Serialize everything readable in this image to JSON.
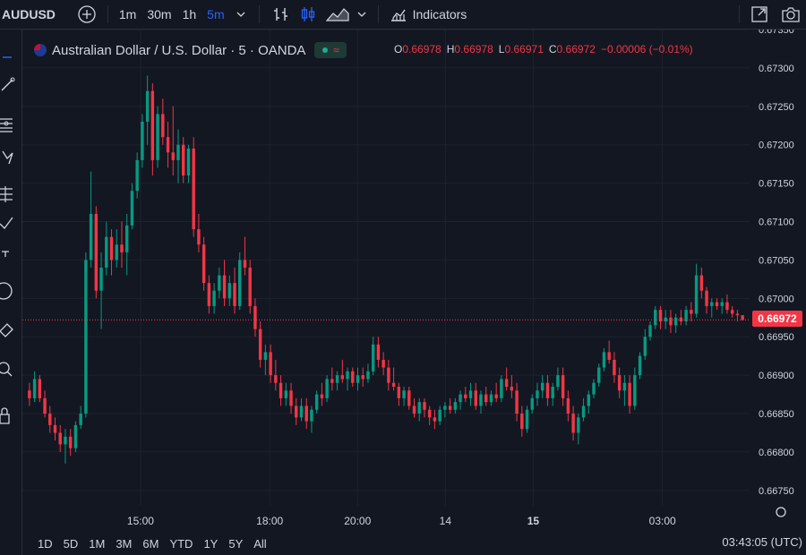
{
  "toolbar": {
    "symbol": "AUDUSD",
    "intervals": [
      "1m",
      "30m",
      "1h",
      "5m"
    ],
    "active_interval": "5m",
    "indicators_label": "Indicators",
    "icons": [
      "add-symbol-icon",
      "bar-style-icon",
      "candle-style-icon",
      "area-style-icon",
      "chevron-down-icon",
      "indicators-icon",
      "fullscreen-icon",
      "camera-icon"
    ]
  },
  "legend": {
    "title": "Australian Dollar / U.S. Dollar · 5 · OANDA",
    "o_label": "O",
    "o_value": "0.66978",
    "h_label": "H",
    "h_value": "0.66978",
    "l_label": "L",
    "l_value": "0.66971",
    "c_label": "C",
    "c_value": "0.66972",
    "change": "−0.00006 (−0.01%)"
  },
  "price_tag": "0.66972",
  "bottom": {
    "ranges": [
      "1D",
      "5D",
      "1M",
      "3M",
      "6M",
      "YTD",
      "1Y",
      "5Y",
      "All"
    ],
    "clock": "03:43:05 (UTC)"
  },
  "colors": {
    "up": "#089981",
    "down": "#f23645",
    "background": "#131722",
    "grid": "#1e222d",
    "text": "#d1d4dc"
  },
  "chart_data": {
    "type": "candlestick",
    "title": "Australian Dollar / U.S. Dollar · 5 · OANDA",
    "y_ticks": [
      "0.67350",
      "0.67300",
      "0.67250",
      "0.67200",
      "0.67150",
      "0.67100",
      "0.67050",
      "0.67000",
      "0.66950",
      "0.66900",
      "0.66850",
      "0.66800",
      "0.66750"
    ],
    "ylim": [
      0.6673,
      0.6735
    ],
    "x_ticks": [
      "15:00",
      "18:00",
      "20:00",
      "14",
      "15",
      "03:00"
    ],
    "last_price": 0.66972,
    "grid": true,
    "ohlc": [
      [
        0.6688,
        0.6689,
        0.6686,
        0.6687
      ],
      [
        0.6687,
        0.66905,
        0.66865,
        0.66895
      ],
      [
        0.66895,
        0.669,
        0.66865,
        0.6687
      ],
      [
        0.6687,
        0.6688,
        0.66845,
        0.6685
      ],
      [
        0.6685,
        0.6686,
        0.66825,
        0.66835
      ],
      [
        0.66835,
        0.66845,
        0.66815,
        0.66825
      ],
      [
        0.66825,
        0.66835,
        0.668,
        0.6681
      ],
      [
        0.6681,
        0.6683,
        0.66785,
        0.6682
      ],
      [
        0.6682,
        0.6683,
        0.66795,
        0.66805
      ],
      [
        0.66805,
        0.6684,
        0.668,
        0.66835
      ],
      [
        0.66835,
        0.6686,
        0.6683,
        0.6685
      ],
      [
        0.6685,
        0.6706,
        0.66845,
        0.6705
      ],
      [
        0.6705,
        0.67165,
        0.6704,
        0.6711
      ],
      [
        0.6711,
        0.6712,
        0.67,
        0.6701
      ],
      [
        0.6701,
        0.6706,
        0.6696,
        0.6704
      ],
      [
        0.6704,
        0.671,
        0.6703,
        0.6708
      ],
      [
        0.6708,
        0.6709,
        0.6703,
        0.6705
      ],
      [
        0.6705,
        0.6709,
        0.6704,
        0.6707
      ],
      [
        0.6707,
        0.671,
        0.6704,
        0.6706
      ],
      [
        0.6706,
        0.6711,
        0.6703,
        0.67095
      ],
      [
        0.67095,
        0.6715,
        0.6709,
        0.6714
      ],
      [
        0.6714,
        0.6719,
        0.6713,
        0.6718
      ],
      [
        0.6718,
        0.6724,
        0.6717,
        0.6723
      ],
      [
        0.6723,
        0.6729,
        0.672,
        0.6727
      ],
      [
        0.6727,
        0.6728,
        0.6716,
        0.6718
      ],
      [
        0.6718,
        0.6725,
        0.6717,
        0.6724
      ],
      [
        0.6724,
        0.6726,
        0.672,
        0.6721
      ],
      [
        0.6721,
        0.6723,
        0.6717,
        0.6719
      ],
      [
        0.6719,
        0.6725,
        0.6716,
        0.6718
      ],
      [
        0.6718,
        0.6722,
        0.6715,
        0.672
      ],
      [
        0.672,
        0.6721,
        0.6715,
        0.6716
      ],
      [
        0.6716,
        0.672,
        0.6715,
        0.67195
      ],
      [
        0.67195,
        0.6721,
        0.6708,
        0.6709
      ],
      [
        0.6709,
        0.6711,
        0.6706,
        0.6707
      ],
      [
        0.6707,
        0.6708,
        0.6701,
        0.6702
      ],
      [
        0.6702,
        0.6703,
        0.6698,
        0.6699
      ],
      [
        0.6699,
        0.6702,
        0.6698,
        0.6701
      ],
      [
        0.6701,
        0.6704,
        0.67,
        0.6703
      ],
      [
        0.6703,
        0.6705,
        0.6699,
        0.67
      ],
      [
        0.67,
        0.6703,
        0.6699,
        0.6702
      ],
      [
        0.6702,
        0.6704,
        0.6698,
        0.6699
      ],
      [
        0.6699,
        0.6706,
        0.66985,
        0.6705
      ],
      [
        0.6705,
        0.6708,
        0.6703,
        0.6704
      ],
      [
        0.6704,
        0.6705,
        0.6698,
        0.6699
      ],
      [
        0.6699,
        0.67,
        0.6695,
        0.6696
      ],
      [
        0.6696,
        0.6697,
        0.6691,
        0.6692
      ],
      [
        0.6692,
        0.6694,
        0.669,
        0.6693
      ],
      [
        0.6693,
        0.6694,
        0.6689,
        0.669
      ],
      [
        0.669,
        0.6692,
        0.6688,
        0.6689
      ],
      [
        0.6689,
        0.669,
        0.6686,
        0.6687
      ],
      [
        0.6687,
        0.6689,
        0.6686,
        0.6688
      ],
      [
        0.6688,
        0.6689,
        0.6685,
        0.6686
      ],
      [
        0.6686,
        0.6687,
        0.66835,
        0.66845
      ],
      [
        0.66845,
        0.6687,
        0.6684,
        0.6686
      ],
      [
        0.6686,
        0.6687,
        0.6683,
        0.6684
      ],
      [
        0.6684,
        0.6686,
        0.66825,
        0.66855
      ],
      [
        0.66855,
        0.6688,
        0.6685,
        0.66875
      ],
      [
        0.66875,
        0.6689,
        0.6686,
        0.6687
      ],
      [
        0.6687,
        0.669,
        0.66865,
        0.66895
      ],
      [
        0.66895,
        0.6691,
        0.6688,
        0.6689
      ],
      [
        0.6689,
        0.66905,
        0.6688,
        0.669
      ],
      [
        0.669,
        0.6692,
        0.6689,
        0.66895
      ],
      [
        0.66895,
        0.6691,
        0.6688,
        0.66905
      ],
      [
        0.66905,
        0.6691,
        0.66885,
        0.6689
      ],
      [
        0.6689,
        0.6691,
        0.6688,
        0.669
      ],
      [
        0.669,
        0.6691,
        0.66885,
        0.66895
      ],
      [
        0.66895,
        0.66915,
        0.6689,
        0.66905
      ],
      [
        0.66905,
        0.6695,
        0.669,
        0.6694
      ],
      [
        0.6694,
        0.6695,
        0.6691,
        0.6692
      ],
      [
        0.6692,
        0.6693,
        0.669,
        0.6691
      ],
      [
        0.6691,
        0.6692,
        0.6688,
        0.6689
      ],
      [
        0.6689,
        0.6691,
        0.6688,
        0.66885
      ],
      [
        0.66885,
        0.6689,
        0.6686,
        0.6687
      ],
      [
        0.6687,
        0.66885,
        0.6686,
        0.6688
      ],
      [
        0.6688,
        0.66885,
        0.66855,
        0.6686
      ],
      [
        0.6686,
        0.6687,
        0.66845,
        0.6685
      ],
      [
        0.6685,
        0.6687,
        0.6684,
        0.66865
      ],
      [
        0.66865,
        0.6687,
        0.66845,
        0.66855
      ],
      [
        0.66855,
        0.6686,
        0.66835,
        0.66845
      ],
      [
        0.66845,
        0.66855,
        0.6683,
        0.6684
      ],
      [
        0.6684,
        0.6686,
        0.66835,
        0.66855
      ],
      [
        0.66855,
        0.66865,
        0.66845,
        0.6686
      ],
      [
        0.6686,
        0.6687,
        0.6685,
        0.66855
      ],
      [
        0.66855,
        0.6687,
        0.6685,
        0.66865
      ],
      [
        0.66865,
        0.6688,
        0.66855,
        0.66875
      ],
      [
        0.66875,
        0.66885,
        0.66865,
        0.6687
      ],
      [
        0.6687,
        0.6689,
        0.6686,
        0.6688
      ],
      [
        0.6688,
        0.6689,
        0.66855,
        0.6686
      ],
      [
        0.6686,
        0.6688,
        0.6685,
        0.66875
      ],
      [
        0.66875,
        0.66885,
        0.6686,
        0.66865
      ],
      [
        0.66865,
        0.6688,
        0.6686,
        0.66875
      ],
      [
        0.66875,
        0.6689,
        0.66865,
        0.6687
      ],
      [
        0.6687,
        0.669,
        0.66865,
        0.66895
      ],
      [
        0.66895,
        0.6691,
        0.6688,
        0.66885
      ],
      [
        0.66885,
        0.669,
        0.6687,
        0.6688
      ],
      [
        0.6688,
        0.6689,
        0.6684,
        0.6685
      ],
      [
        0.6685,
        0.6686,
        0.6682,
        0.6683
      ],
      [
        0.6683,
        0.6686,
        0.66825,
        0.66855
      ],
      [
        0.66855,
        0.66875,
        0.6685,
        0.6687
      ],
      [
        0.6687,
        0.6689,
        0.6686,
        0.6688
      ],
      [
        0.6688,
        0.669,
        0.6687,
        0.6689
      ],
      [
        0.6689,
        0.669,
        0.6686,
        0.6687
      ],
      [
        0.6687,
        0.6689,
        0.6686,
        0.66885
      ],
      [
        0.66885,
        0.6691,
        0.6688,
        0.669
      ],
      [
        0.669,
        0.6691,
        0.6686,
        0.6687
      ],
      [
        0.6687,
        0.6688,
        0.6684,
        0.6685
      ],
      [
        0.6685,
        0.6686,
        0.66815,
        0.66825
      ],
      [
        0.66825,
        0.6685,
        0.6681,
        0.66845
      ],
      [
        0.66845,
        0.6687,
        0.6684,
        0.6686
      ],
      [
        0.6686,
        0.6688,
        0.6685,
        0.66875
      ],
      [
        0.66875,
        0.66895,
        0.6687,
        0.6689
      ],
      [
        0.6689,
        0.66915,
        0.66885,
        0.6691
      ],
      [
        0.6691,
        0.66935,
        0.66905,
        0.6693
      ],
      [
        0.6693,
        0.66945,
        0.66915,
        0.6692
      ],
      [
        0.6692,
        0.6693,
        0.6689,
        0.669
      ],
      [
        0.669,
        0.6691,
        0.6687,
        0.6688
      ],
      [
        0.6688,
        0.669,
        0.6686,
        0.6689
      ],
      [
        0.6689,
        0.669,
        0.6685,
        0.6686
      ],
      [
        0.6686,
        0.6691,
        0.66855,
        0.669
      ],
      [
        0.669,
        0.6693,
        0.66895,
        0.66925
      ],
      [
        0.66925,
        0.6696,
        0.6692,
        0.6695
      ],
      [
        0.6695,
        0.6697,
        0.66945,
        0.66965
      ],
      [
        0.66965,
        0.6699,
        0.6696,
        0.66985
      ],
      [
        0.66985,
        0.6699,
        0.6696,
        0.6697
      ],
      [
        0.6697,
        0.66985,
        0.6696,
        0.66975
      ],
      [
        0.66975,
        0.66985,
        0.66955,
        0.66965
      ],
      [
        0.66965,
        0.6698,
        0.66955,
        0.66975
      ],
      [
        0.66975,
        0.66985,
        0.66965,
        0.6697
      ],
      [
        0.6697,
        0.6699,
        0.66965,
        0.66985
      ],
      [
        0.66985,
        0.66995,
        0.6697,
        0.6698
      ],
      [
        0.6698,
        0.67045,
        0.66975,
        0.6703
      ],
      [
        0.6703,
        0.6704,
        0.67,
        0.6701
      ],
      [
        0.6701,
        0.67015,
        0.6698,
        0.6699
      ],
      [
        0.6699,
        0.67,
        0.66975,
        0.66995
      ],
      [
        0.66995,
        0.67,
        0.66985,
        0.6699
      ],
      [
        0.6699,
        0.67,
        0.6698,
        0.66995
      ],
      [
        0.66995,
        0.67005,
        0.6698,
        0.66985
      ],
      [
        0.66985,
        0.6699,
        0.66975,
        0.6698
      ],
      [
        0.6698,
        0.66985,
        0.6697,
        0.66978
      ],
      [
        0.66978,
        0.66978,
        0.66971,
        0.66972
      ]
    ]
  }
}
